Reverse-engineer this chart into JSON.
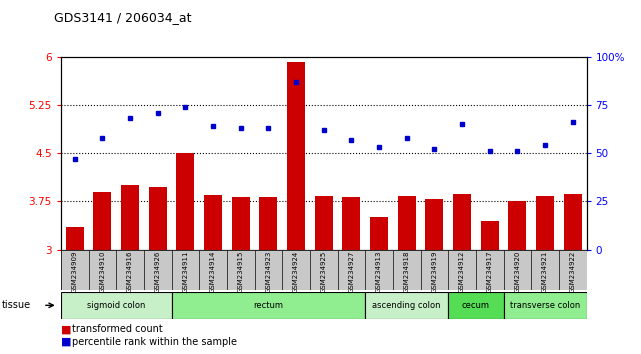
{
  "title": "GDS3141 / 206034_at",
  "samples": [
    "GSM234909",
    "GSM234910",
    "GSM234916",
    "GSM234926",
    "GSM234911",
    "GSM234914",
    "GSM234915",
    "GSM234923",
    "GSM234924",
    "GSM234925",
    "GSM234927",
    "GSM234913",
    "GSM234918",
    "GSM234919",
    "GSM234912",
    "GSM234917",
    "GSM234920",
    "GSM234921",
    "GSM234922"
  ],
  "bar_values": [
    3.35,
    3.9,
    4.0,
    3.98,
    4.5,
    3.85,
    3.82,
    3.82,
    5.92,
    3.83,
    3.82,
    3.5,
    3.83,
    3.78,
    3.87,
    3.45,
    3.75,
    3.83,
    3.87
  ],
  "dot_values": [
    47,
    58,
    68,
    71,
    74,
    64,
    63,
    63,
    87,
    62,
    57,
    53,
    58,
    52,
    65,
    51,
    51,
    54,
    66
  ],
  "bar_color": "#cc0000",
  "dot_color": "#0000cc",
  "ylim_left": [
    3.0,
    6.0
  ],
  "ylim_right": [
    0,
    100
  ],
  "yticks_left": [
    3.0,
    3.75,
    4.5,
    5.25,
    6.0
  ],
  "yticks_right": [
    0,
    25,
    50,
    75,
    100
  ],
  "ytick_labels_left": [
    "3",
    "3.75",
    "4.5",
    "5.25",
    "6"
  ],
  "ytick_labels_right": [
    "0",
    "25",
    "50",
    "75",
    "100%"
  ],
  "hlines": [
    3.75,
    4.5,
    5.25
  ],
  "tissue_groups": [
    {
      "label": "sigmoid colon",
      "start": 0,
      "end": 4,
      "color": "#c8f0c8"
    },
    {
      "label": "rectum",
      "start": 4,
      "end": 11,
      "color": "#90ee90"
    },
    {
      "label": "ascending colon",
      "start": 11,
      "end": 14,
      "color": "#c8f0c8"
    },
    {
      "label": "cecum",
      "start": 14,
      "end": 16,
      "color": "#55dd55"
    },
    {
      "label": "transverse colon",
      "start": 16,
      "end": 19,
      "color": "#90ee90"
    }
  ],
  "legend_bar_label": "transformed count",
  "legend_dot_label": "percentile rank within the sample",
  "tissue_label": "tissue",
  "tick_area_bg": "#c8c8c8"
}
